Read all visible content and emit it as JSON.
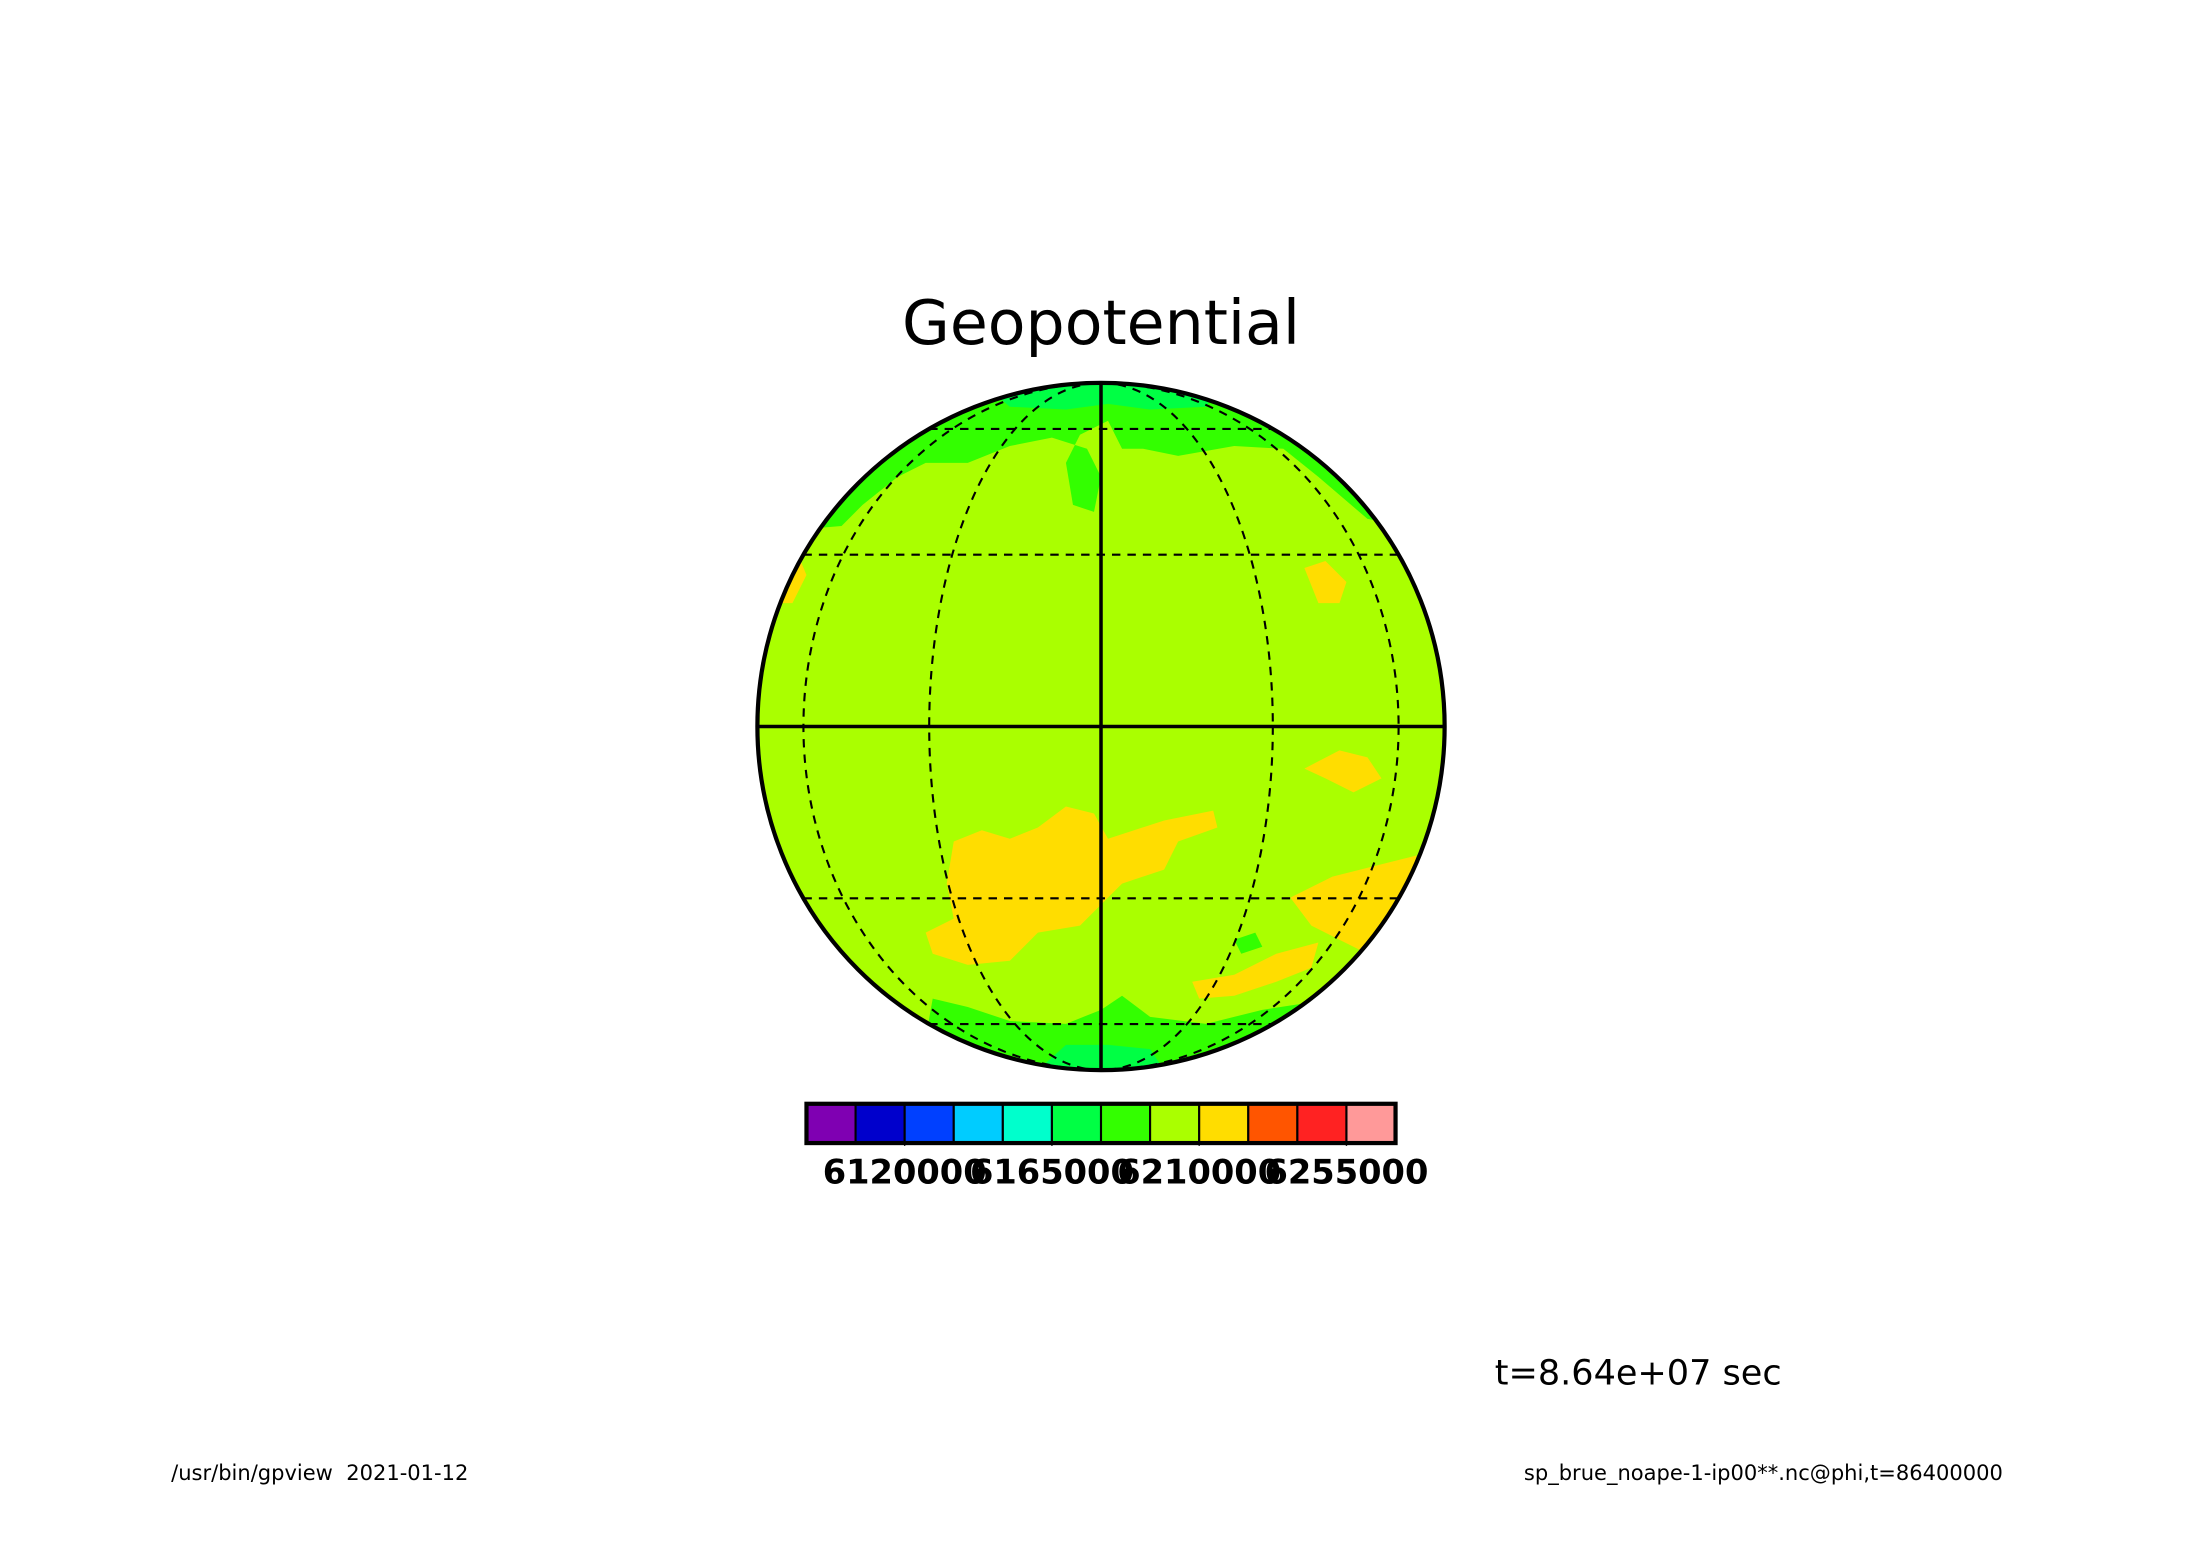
{
  "chart_data": {
    "type": "contour-globe",
    "title": "Geopotential",
    "colors": [
      "#7f00b2",
      "#0000cc",
      "#0040ff",
      "#00ccff",
      "#00ffcc",
      "#00ff44",
      "#33ff00",
      "#aaff00",
      "#ffdd00",
      "#ff5500",
      "#ff2222",
      "#ff9999"
    ],
    "clim": [
      6090000,
      6270000
    ],
    "cticks": [
      6120000,
      6165000,
      6210000,
      6255000
    ],
    "time_label": "t=8.64e+07 sec",
    "footer_left": "/usr/bin/gpview  2021-01-12",
    "footer_right": "sp_brue_noape-1-ip00**.nc@phi,t=86400000"
  }
}
